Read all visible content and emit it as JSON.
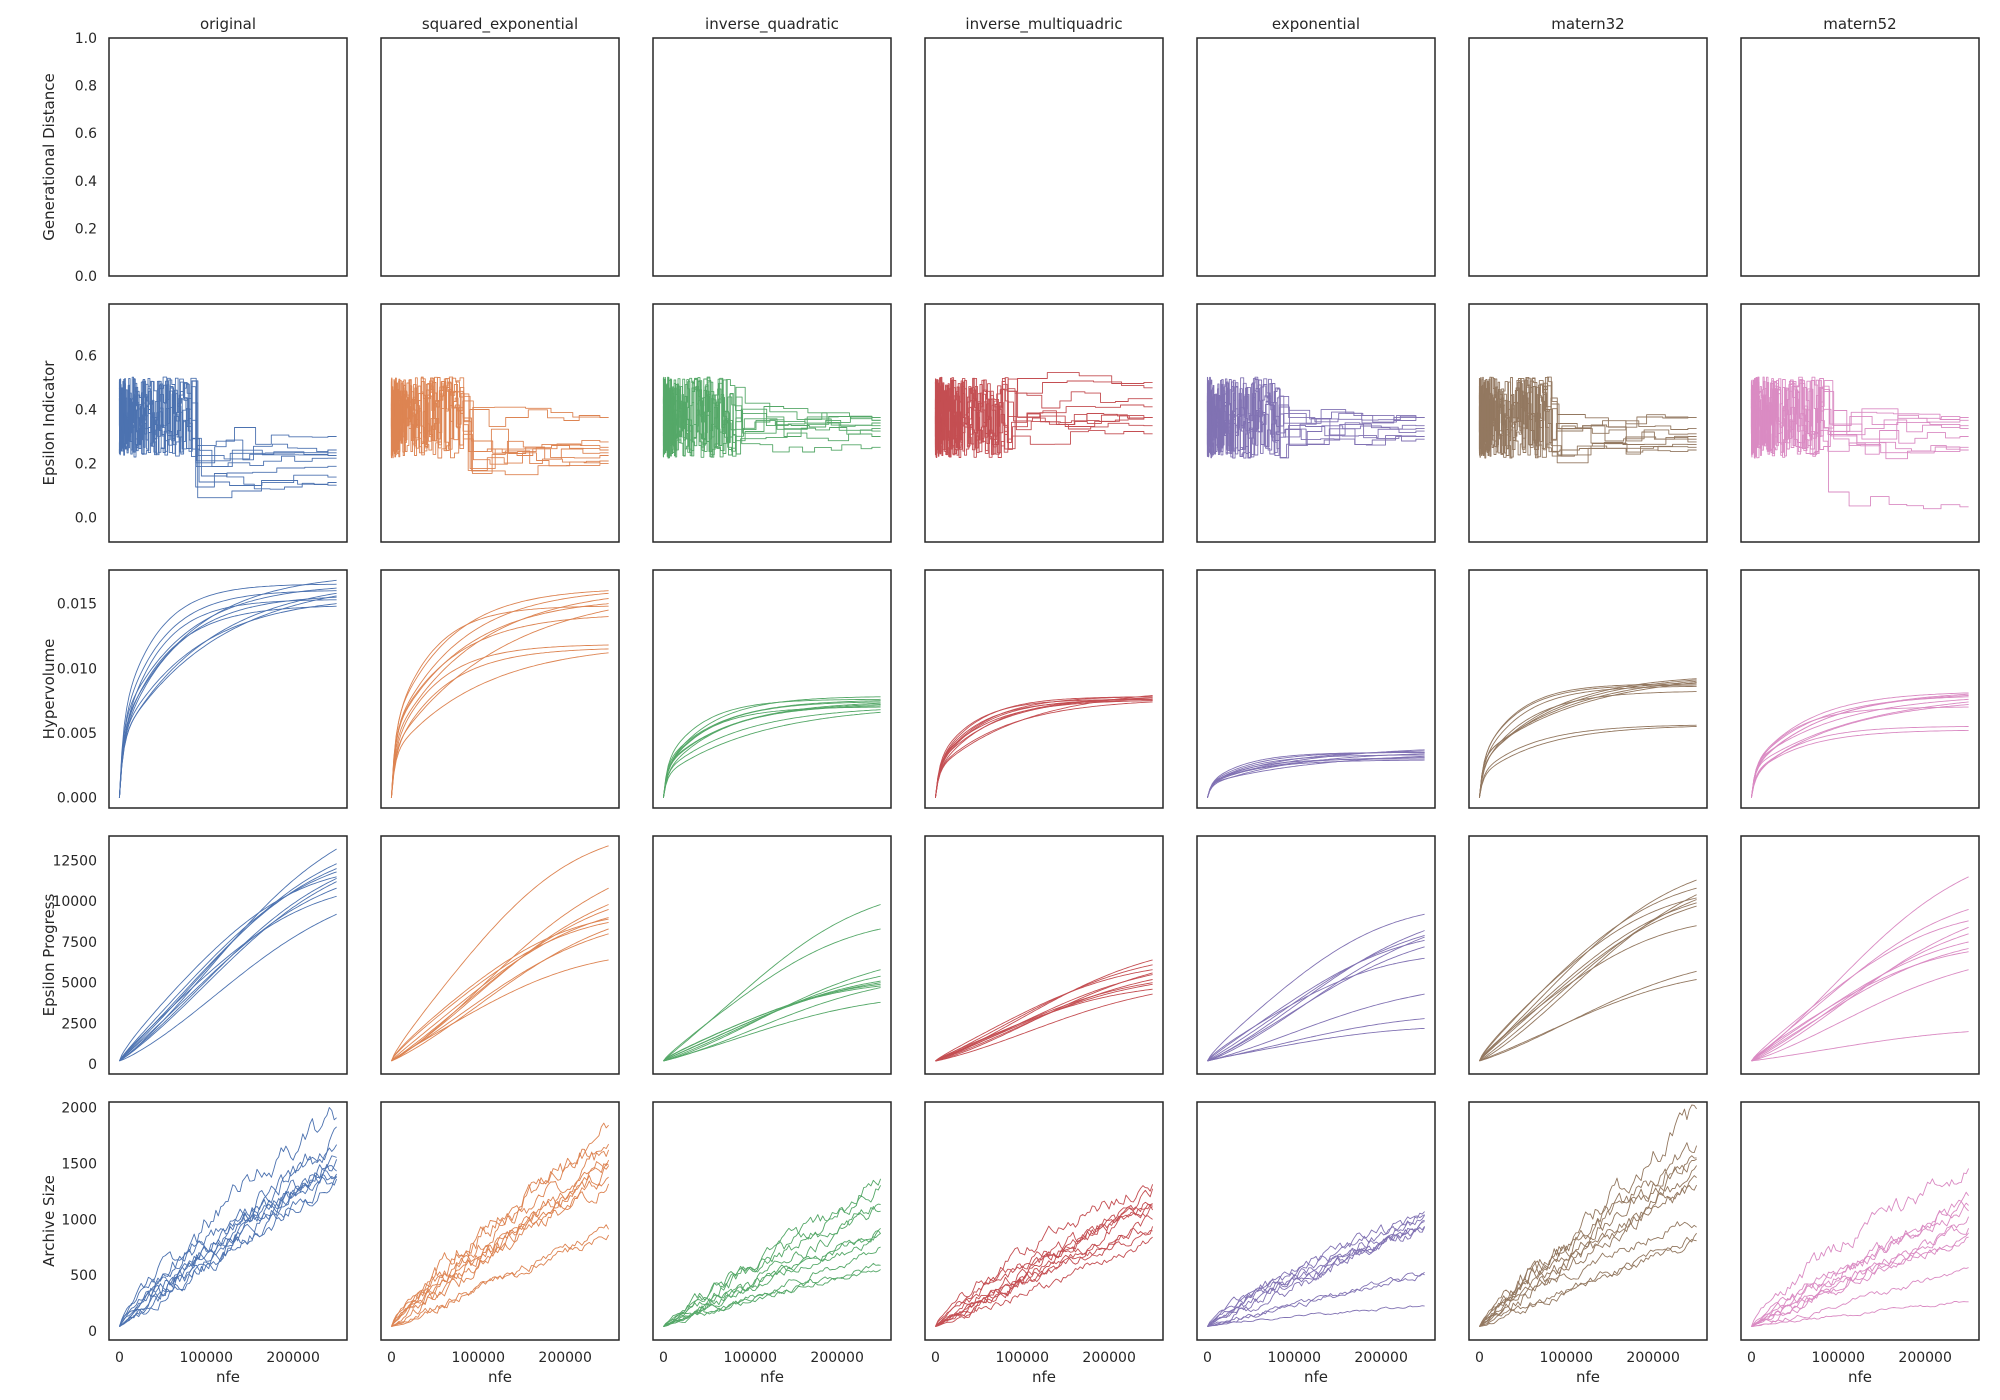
{
  "chart_data": {
    "type": "line",
    "layout": "grid",
    "columns": [
      {
        "title": "original",
        "color": "#4c72b0"
      },
      {
        "title": "squared_exponential",
        "color": "#dd8452"
      },
      {
        "title": "inverse_quadratic",
        "color": "#55a868"
      },
      {
        "title": "inverse_multiquadric",
        "color": "#c44e52"
      },
      {
        "title": "exponential",
        "color": "#8172b3"
      },
      {
        "title": "matern32",
        "color": "#937860"
      },
      {
        "title": "matern52",
        "color": "#da8bc3"
      }
    ],
    "x": {
      "label": "nfe",
      "range": [
        0,
        250000
      ],
      "lim": [
        -12000,
        262000
      ],
      "ticks": [
        0,
        100000,
        200000
      ],
      "tick_labels": [
        "0",
        "100000",
        "200000"
      ]
    },
    "rows": [
      {
        "ylabel": "Generational Distance",
        "ylim": [
          0,
          1.0
        ],
        "yticks": [
          0,
          0.2,
          0.4,
          0.6,
          0.8,
          1.0
        ],
        "ytick_labels": [
          "0.0",
          "0.2",
          "0.4",
          "0.6",
          "0.8",
          "1.0"
        ],
        "kind": "empty"
      },
      {
        "ylabel": "Epsilon Indicator",
        "ylim": [
          -0.09,
          0.79
        ],
        "yticks": [
          0,
          0.2,
          0.4,
          0.6
        ],
        "ytick_labels": [
          "0.0",
          "0.2",
          "0.4",
          "0.6"
        ],
        "kind": "step",
        "series_per_panel": 10,
        "final": [
          [
            0.13,
            0.12,
            0.22,
            0.25,
            0.19,
            0.23,
            0.3,
            0.25,
            0.24,
            0.15
          ],
          [
            0.21,
            0.24,
            0.37,
            0.25,
            0.2,
            0.23,
            0.28,
            0.37,
            0.21,
            0.26
          ],
          [
            0.37,
            0.35,
            0.33,
            0.36,
            0.26,
            0.3,
            0.34,
            0.37,
            0.36,
            0.32
          ],
          [
            0.37,
            0.41,
            0.5,
            0.31,
            0.37,
            0.34,
            0.44,
            0.37,
            0.48,
            0.37
          ],
          [
            0.37,
            0.33,
            0.3,
            0.37,
            0.32,
            0.37,
            0.34,
            0.29,
            0.37,
            0.3
          ],
          [
            0.25,
            0.37,
            0.27,
            0.3,
            0.26,
            0.31,
            0.29,
            0.33,
            0.37,
            0.28
          ],
          [
            0.37,
            0.25,
            0.33,
            0.04,
            0.37,
            0.3,
            0.25,
            0.34,
            0.26,
            0.36
          ]
        ]
      },
      {
        "ylabel": "Hypervolume",
        "ylim": [
          -0.0008,
          0.0176
        ],
        "yticks": [
          0,
          0.005,
          0.01,
          0.015
        ],
        "ytick_labels": [
          "0.000",
          "0.005",
          "0.010",
          "0.015"
        ],
        "kind": "saturating",
        "series_per_panel": 10,
        "final": [
          [
            0.0168,
            0.0158,
            0.0165,
            0.016,
            0.0148,
            0.0155,
            0.0162,
            0.015,
            0.0156,
            0.0153
          ],
          [
            0.016,
            0.0158,
            0.0154,
            0.0145,
            0.0148,
            0.0118,
            0.0115,
            0.014,
            0.015,
            0.0112
          ],
          [
            0.0078,
            0.0075,
            0.0072,
            0.0068,
            0.0066,
            0.0076,
            0.007,
            0.0074,
            0.0071,
            0.0073
          ],
          [
            0.0078,
            0.0076,
            0.0075,
            0.0077,
            0.0074,
            0.0079,
            0.0076,
            0.0075,
            0.0078,
            0.0077
          ],
          [
            0.0037,
            0.0035,
            0.0033,
            0.0029,
            0.0031,
            0.0036,
            0.0034,
            0.0032,
            0.003,
            0.0035
          ],
          [
            0.0092,
            0.009,
            0.0088,
            0.0086,
            0.0082,
            0.0056,
            0.0055,
            0.0091,
            0.0089,
            0.0087
          ],
          [
            0.0081,
            0.0079,
            0.0076,
            0.0074,
            0.007,
            0.0055,
            0.0052,
            0.0078,
            0.008,
            0.0072
          ]
        ]
      },
      {
        "ylabel": "Epsilon Progress",
        "ylim": [
          -600,
          14000
        ],
        "yticks": [
          0,
          2500,
          5000,
          7500,
          10000,
          12500
        ],
        "ytick_labels": [
          "0",
          "2500",
          "5000",
          "7500",
          "10000",
          "12500"
        ],
        "kind": "growth",
        "series_per_panel": 10,
        "final": [
          [
            13200,
            12300,
            11800,
            11500,
            11200,
            10800,
            10300,
            9200,
            11400,
            12000
          ],
          [
            13400,
            10800,
            9500,
            9000,
            8700,
            8300,
            8000,
            6400,
            8900,
            9800
          ],
          [
            9800,
            8300,
            5800,
            5400,
            5100,
            4900,
            4700,
            3800,
            5000,
            4800
          ],
          [
            6400,
            6100,
            5800,
            5600,
            5200,
            4900,
            4600,
            4300,
            5500,
            5000
          ],
          [
            9200,
            8200,
            7900,
            7600,
            6500,
            4300,
            2800,
            2200,
            7800,
            7200
          ],
          [
            11300,
            10800,
            10400,
            10100,
            9700,
            8500,
            5700,
            5200,
            9900,
            10200
          ],
          [
            11500,
            9500,
            8800,
            8400,
            8000,
            7100,
            6900,
            5800,
            2000,
            7500
          ]
        ]
      },
      {
        "ylabel": "Archive Size",
        "ylim": [
          -80,
          2050
        ],
        "yticks": [
          0,
          500,
          1000,
          1500,
          2000
        ],
        "ytick_labels": [
          "0",
          "500",
          "1000",
          "1500",
          "2000"
        ],
        "kind": "noisy",
        "series_per_panel": 10,
        "final": [
          [
            1930,
            1750,
            1560,
            1500,
            1450,
            1400,
            1340,
            1480,
            1620,
            1520
          ],
          [
            1800,
            1600,
            1550,
            1500,
            1350,
            1300,
            900,
            850,
            1450,
            1700
          ],
          [
            1350,
            1280,
            1120,
            1100,
            900,
            870,
            820,
            730,
            600,
            560
          ],
          [
            1330,
            1250,
            1200,
            1150,
            1080,
            1000,
            950,
            870,
            820,
            1100
          ],
          [
            1050,
            1000,
            980,
            960,
            930,
            900,
            520,
            500,
            230,
            1020
          ],
          [
            1950,
            1650,
            1500,
            1450,
            1400,
            1300,
            1000,
            850,
            800,
            1550
          ],
          [
            1450,
            1200,
            1150,
            1100,
            1000,
            950,
            850,
            830,
            550,
            270
          ]
        ]
      }
    ]
  }
}
